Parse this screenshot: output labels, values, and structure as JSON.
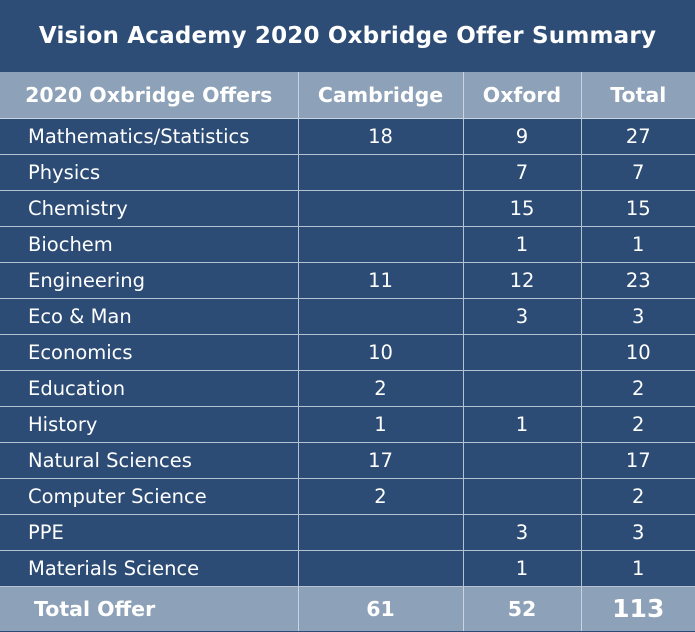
{
  "title": "Vision Academy 2020 Oxbridge Offer Summary",
  "headers": {
    "subject": "2020 Oxbridge Offers",
    "cambridge": "Cambridge",
    "oxford": "Oxford",
    "total": "Total"
  },
  "rows": [
    {
      "subject": "Mathematics/Statistics",
      "cambridge": "18",
      "oxford": "9",
      "total": "27"
    },
    {
      "subject": "Physics",
      "cambridge": "",
      "oxford": "7",
      "total": "7"
    },
    {
      "subject": "Chemistry",
      "cambridge": "",
      "oxford": "15",
      "total": "15"
    },
    {
      "subject": "Biochem",
      "cambridge": "",
      "oxford": "1",
      "total": "1"
    },
    {
      "subject": "Engineering",
      "cambridge": "11",
      "oxford": "12",
      "total": "23"
    },
    {
      "subject": "Eco & Man",
      "cambridge": "",
      "oxford": "3",
      "total": "3"
    },
    {
      "subject": "Economics",
      "cambridge": "10",
      "oxford": "",
      "total": "10"
    },
    {
      "subject": "Education",
      "cambridge": "2",
      "oxford": "",
      "total": "2"
    },
    {
      "subject": "History",
      "cambridge": "1",
      "oxford": "1",
      "total": "2"
    },
    {
      "subject": "Natural Sciences",
      "cambridge": "17",
      "oxford": "",
      "total": "17"
    },
    {
      "subject": "Computer Science",
      "cambridge": "2",
      "oxford": "",
      "total": "2"
    },
    {
      "subject": "PPE",
      "cambridge": "",
      "oxford": "3",
      "total": "3"
    },
    {
      "subject": "Materials Science",
      "cambridge": "",
      "oxford": "1",
      "total": "1"
    }
  ],
  "totals": {
    "label": "Total Offer",
    "cambridge": "61",
    "oxford": "52",
    "total": "113"
  },
  "colors": {
    "background": "#2c4c75",
    "header_band": "#8da1b8",
    "grid_line": "#b4c2d3",
    "text": "#ffffff"
  }
}
